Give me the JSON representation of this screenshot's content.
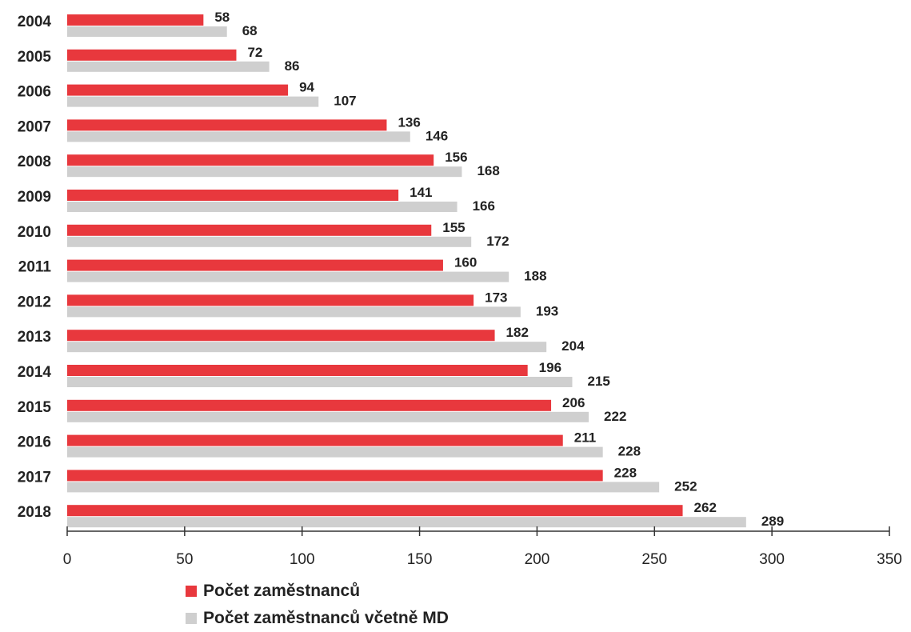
{
  "chart_data": {
    "type": "bar",
    "orientation": "horizontal",
    "categories": [
      "2004",
      "2005",
      "2006",
      "2007",
      "2008",
      "2009",
      "2010",
      "2011",
      "2012",
      "2013",
      "2014",
      "2015",
      "2016",
      "2017",
      "2018"
    ],
    "series": [
      {
        "name": "Počet zaměstnanců",
        "color": "#e8383d",
        "values": [
          58,
          72,
          94,
          136,
          156,
          141,
          155,
          160,
          173,
          182,
          196,
          206,
          211,
          228,
          262
        ]
      },
      {
        "name": "Počet zaměstnanců včetně MD",
        "color": "#cfcfcf",
        "values": [
          68,
          86,
          107,
          146,
          168,
          166,
          172,
          188,
          193,
          204,
          215,
          222,
          228,
          252,
          289
        ]
      }
    ],
    "xticks": [
      0,
      50,
      100,
      150,
      200,
      250,
      300,
      350
    ],
    "xlim": [
      0,
      350
    ],
    "legend_position": "bottom-left",
    "grid": false
  }
}
